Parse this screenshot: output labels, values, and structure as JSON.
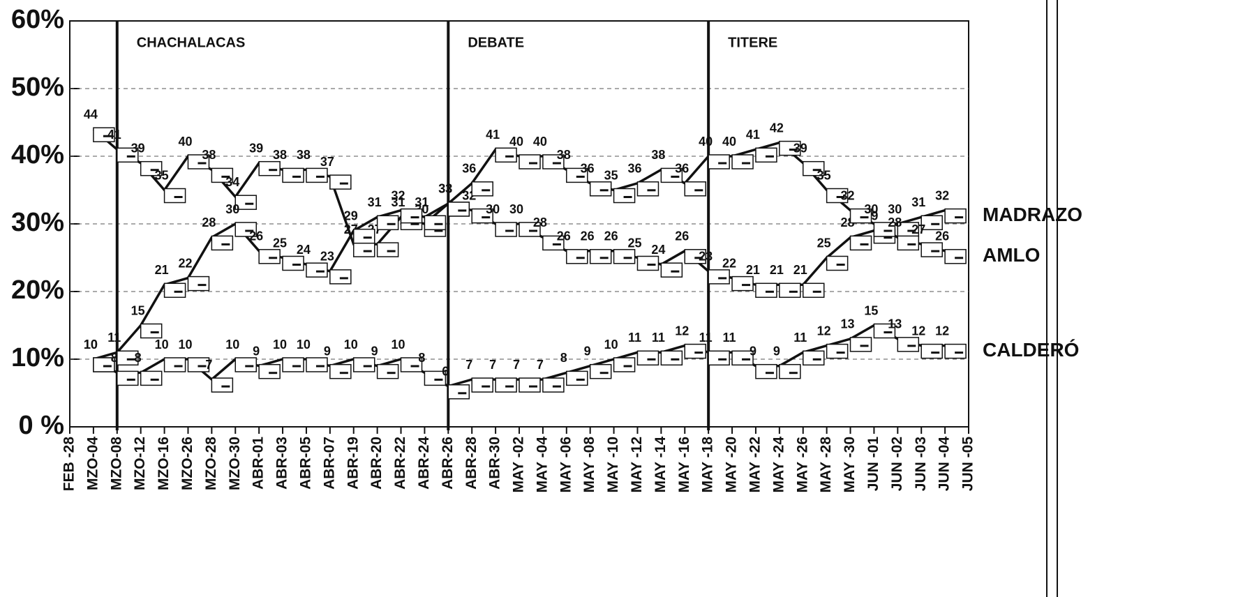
{
  "chart_data": {
    "type": "line",
    "categories": [
      "FEB -28",
      "MZO-04",
      "MZO-08",
      "MZO-12",
      "MZO-16",
      "MZO-26",
      "MZO-28",
      "MZO-30",
      "ABR-01",
      "ABR-03",
      "ABR-05",
      "ABR-07",
      "ABR-19",
      "ABR-20",
      "ABR-22",
      "ABR-24",
      "ABR-26",
      "ABR-28",
      "ABR-30",
      "MAY -02",
      "MAY -04",
      "MAY -06",
      "MAY -08",
      "MAY -10",
      "MAY -12",
      "MAY -14",
      "MAY -16",
      "MAY -18",
      "MAY -20",
      "MAY -22",
      "MAY -24",
      "MAY -26",
      "MAY -28",
      "MAY -30",
      "JUN -01",
      "JUN -02",
      "JUN -03",
      "JUN -04",
      "JUN -05"
    ],
    "series": [
      {
        "name": "MADRAZO",
        "color": "#111111",
        "values": [
          null,
          44,
          41,
          39,
          35,
          40,
          38,
          34,
          39,
          38,
          38,
          37,
          27,
          27,
          31,
          30,
          33,
          32,
          30,
          30,
          28,
          26,
          26,
          26,
          25,
          24,
          26,
          23,
          22,
          21,
          21,
          21,
          25,
          28,
          29,
          30,
          31,
          32,
          null
        ]
      },
      {
        "name": "AMLO",
        "color": "#111111",
        "values": [
          null,
          10,
          11,
          15,
          21,
          22,
          28,
          30,
          26,
          25,
          24,
          23,
          29,
          31,
          32,
          31,
          33,
          36,
          41,
          40,
          40,
          38,
          36,
          35,
          36,
          38,
          36,
          40,
          40,
          41,
          42,
          39,
          35,
          32,
          30,
          28,
          27,
          26,
          null
        ]
      },
      {
        "name": "CALDERÓ",
        "color": "#111111",
        "values": [
          null,
          10,
          8,
          8,
          10,
          10,
          7,
          10,
          9,
          10,
          10,
          9,
          10,
          9,
          10,
          8,
          6,
          7,
          7,
          7,
          7,
          8,
          9,
          10,
          11,
          11,
          12,
          11,
          11,
          9,
          9,
          11,
          12,
          13,
          15,
          13,
          12,
          12,
          null
        ]
      }
    ],
    "events": [
      {
        "label": "CHACHALACAS",
        "x": "MZO-08"
      },
      {
        "label": "DEBATE",
        "x": "ABR-26"
      },
      {
        "label": "TITERE",
        "x": "MAY -18"
      }
    ],
    "ylim": [
      0,
      60
    ],
    "yticks": [
      {
        "value": 0,
        "label": "0 %"
      },
      {
        "value": 10,
        "label": "10%"
      },
      {
        "value": 20,
        "label": "20%"
      },
      {
        "value": 30,
        "label": "30%"
      },
      {
        "value": 40,
        "label": "40%"
      },
      {
        "value": 50,
        "label": "50%"
      },
      {
        "value": 60,
        "label": "60%"
      }
    ],
    "grid": true
  }
}
